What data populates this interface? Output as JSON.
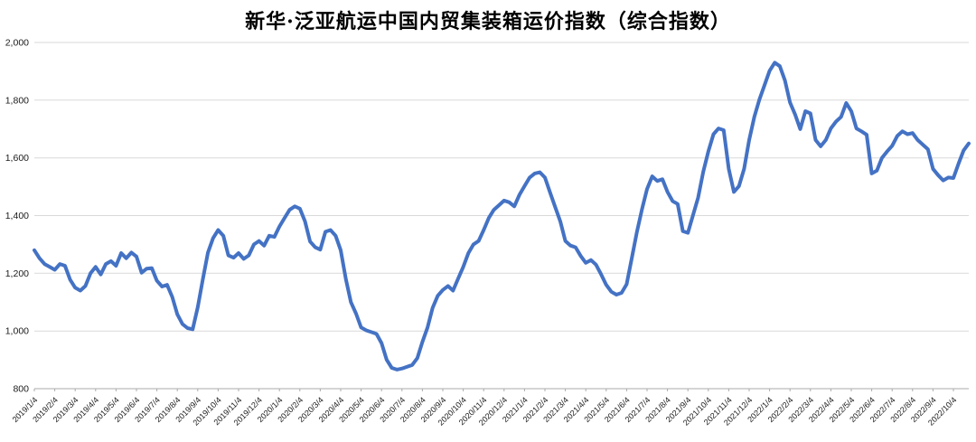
{
  "chart_data": {
    "type": "line",
    "title": "新华·泛亚航运中国内贸集装箱运价指数（综合指数）",
    "series_name": "综合指数",
    "line_color": "#4472C4",
    "grid_color": "#D9D9D9",
    "axis_color": "#ABABAB",
    "text_color": "#1a1a1a",
    "grid": true,
    "legend_position": "none",
    "ylim": [
      800,
      2000
    ],
    "y_tick_values": [
      800,
      1000,
      1200,
      1400,
      1600,
      1800,
      2000
    ],
    "y_ticks": [
      "800",
      "1,000",
      "1,200",
      "1,400",
      "1,600",
      "1,800",
      "2,000"
    ],
    "x_tick_labels": [
      "2019/1/4",
      "2019/2/4",
      "2019/3/4",
      "2019/4/4",
      "2019/5/4",
      "2019/6/4",
      "2019/7/4",
      "2019/8/4",
      "2019/9/4",
      "2019/10/4",
      "2019/11/4",
      "2019/12/4",
      "2020/1/4",
      "2020/2/4",
      "2020/3/4",
      "2020/4/4",
      "2020/5/4",
      "2020/6/4",
      "2020/7/4",
      "2020/8/4",
      "2020/9/4",
      "2020/10/4",
      "2020/11/4",
      "2020/12/4",
      "2021/1/4",
      "2021/2/4",
      "2021/3/4",
      "2021/4/4",
      "2021/5/4",
      "2021/6/4",
      "2021/7/4",
      "2021/8/4",
      "2021/9/4",
      "2021/10/4",
      "2021/11/4",
      "2021/12/4",
      "2022/1/4",
      "2022/2/4",
      "2022/3/4",
      "2022/4/4",
      "2022/5/4",
      "2022/6/4",
      "2022/7/4",
      "2022/8/4",
      "2022/9/4",
      "2022/10/4"
    ],
    "points_per_month": 4,
    "values": [
      1280,
      1252,
      1232,
      1222,
      1212,
      1232,
      1226,
      1178,
      1150,
      1140,
      1156,
      1200,
      1222,
      1196,
      1232,
      1242,
      1226,
      1270,
      1252,
      1272,
      1258,
      1202,
      1216,
      1218,
      1174,
      1154,
      1160,
      1118,
      1058,
      1024,
      1010,
      1006,
      1082,
      1180,
      1272,
      1322,
      1350,
      1330,
      1262,
      1254,
      1270,
      1250,
      1262,
      1300,
      1312,
      1296,
      1330,
      1326,
      1362,
      1392,
      1420,
      1432,
      1424,
      1380,
      1310,
      1290,
      1282,
      1344,
      1350,
      1330,
      1280,
      1180,
      1100,
      1060,
      1012,
      1002,
      996,
      990,
      958,
      900,
      872,
      866,
      870,
      876,
      882,
      906,
      962,
      1012,
      1080,
      1122,
      1142,
      1156,
      1140,
      1182,
      1222,
      1270,
      1300,
      1312,
      1350,
      1392,
      1420,
      1436,
      1452,
      1446,
      1432,
      1472,
      1502,
      1532,
      1546,
      1550,
      1532,
      1480,
      1430,
      1380,
      1312,
      1296,
      1290,
      1260,
      1236,
      1246,
      1230,
      1196,
      1160,
      1136,
      1126,
      1132,
      1162,
      1252,
      1342,
      1422,
      1492,
      1536,
      1520,
      1526,
      1482,
      1450,
      1440,
      1346,
      1340,
      1402,
      1462,
      1552,
      1622,
      1682,
      1702,
      1696,
      1562,
      1482,
      1502,
      1562,
      1662,
      1742,
      1802,
      1852,
      1902,
      1930,
      1918,
      1868,
      1792,
      1750,
      1700,
      1762,
      1754,
      1662,
      1640,
      1662,
      1702,
      1726,
      1742,
      1790,
      1762,
      1702,
      1692,
      1680,
      1546,
      1556,
      1600,
      1622,
      1642,
      1676,
      1692,
      1682,
      1686,
      1662,
      1646,
      1630,
      1562,
      1540,
      1522,
      1532,
      1530,
      1580,
      1626,
      1650
    ]
  }
}
